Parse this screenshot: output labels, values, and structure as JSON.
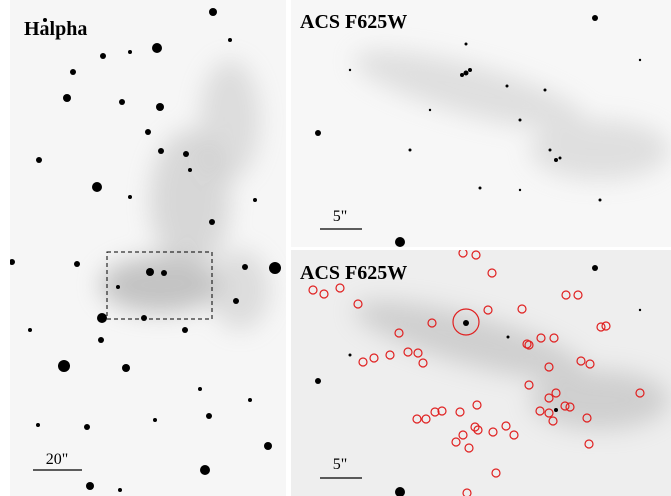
{
  "panels": [
    {
      "label": "Halpha",
      "scale_bar": "20\""
    },
    {
      "label": "ACS F625W",
      "scale_bar": "5\""
    },
    {
      "label": "ACS F625W",
      "scale_bar": "5\""
    }
  ]
}
